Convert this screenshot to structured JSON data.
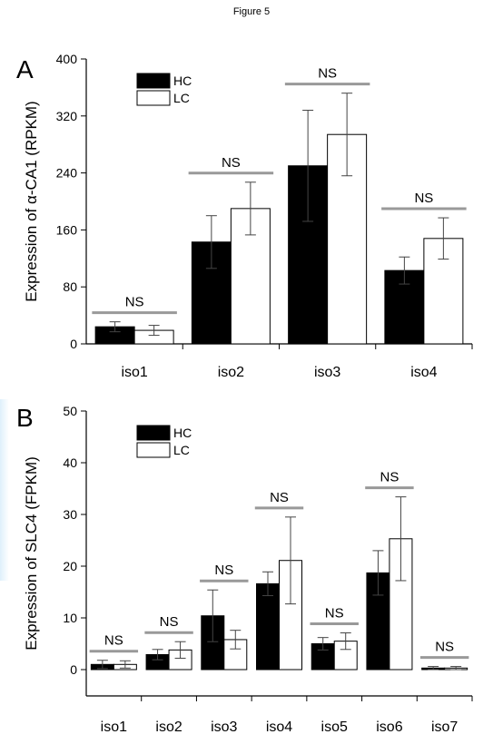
{
  "figure_title": "Figure 5",
  "colors": {
    "hc": "#000000",
    "lc": "#ffffff",
    "ns_line": "#999999",
    "axis": "#000000"
  },
  "chart_data": [
    {
      "panel": "A",
      "type": "bar",
      "ylabel": "Expression of α-CA1 (RPKM)",
      "xlabel": "",
      "ylim": [
        0,
        400
      ],
      "yticks": [
        0,
        80,
        160,
        240,
        320,
        400
      ],
      "categories": [
        "iso1",
        "iso2",
        "iso3",
        "iso4"
      ],
      "series": [
        {
          "name": "HC",
          "values": [
            24,
            143,
            250,
            103
          ],
          "errors": [
            7,
            37,
            78,
            19
          ]
        },
        {
          "name": "LC",
          "values": [
            19,
            190,
            294,
            148
          ],
          "errors": [
            7,
            37,
            58,
            29
          ]
        }
      ],
      "annotations": [
        "NS",
        "NS",
        "NS",
        "NS"
      ],
      "grid": false,
      "legend_position": "top-left"
    },
    {
      "panel": "B",
      "type": "bar",
      "ylabel": "Expression of SLC4 (FPKM)",
      "xlabel": "",
      "ylim": [
        -2,
        50
      ],
      "yticks": [
        0,
        10,
        20,
        30,
        40,
        50
      ],
      "categories": [
        "iso1",
        "iso2",
        "iso3",
        "iso4",
        "iso5",
        "iso6",
        "iso7"
      ],
      "series": [
        {
          "name": "HC",
          "values": [
            1.0,
            2.9,
            10.4,
            16.6,
            5.0,
            18.7,
            0.3
          ],
          "errors": [
            0.8,
            1.0,
            5.0,
            2.3,
            1.2,
            4.3,
            0.3
          ]
        },
        {
          "name": "LC",
          "values": [
            1.0,
            3.8,
            5.8,
            21.1,
            5.5,
            25.3,
            0.3
          ],
          "errors": [
            0.7,
            1.6,
            1.8,
            8.4,
            1.6,
            8.1,
            0.3
          ]
        }
      ],
      "annotations": [
        "NS",
        "NS",
        "NS",
        "NS",
        "NS",
        "NS",
        "NS"
      ],
      "grid": false,
      "legend_position": "top-left"
    }
  ]
}
